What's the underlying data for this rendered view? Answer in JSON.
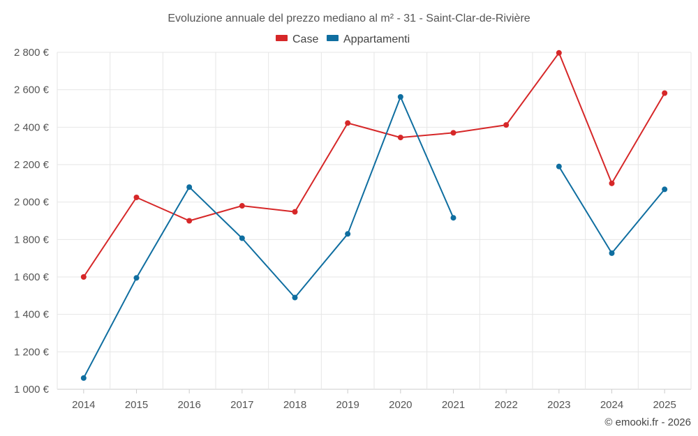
{
  "chart_data": {
    "type": "line",
    "title": "Evoluzione annuale del prezzo mediano al m² - 31 - Saint-Clar-de-Rivière",
    "x": [
      "2014",
      "2015",
      "2016",
      "2017",
      "2018",
      "2019",
      "2020",
      "2021",
      "2022",
      "2023",
      "2024",
      "2025"
    ],
    "series": [
      {
        "name": "Case",
        "color": "#d62728",
        "values": [
          1600,
          2025,
          1900,
          1980,
          1948,
          2422,
          2345,
          2370,
          2412,
          2797,
          2100,
          2582
        ]
      },
      {
        "name": "Appartamenti",
        "color": "#0f6ea0",
        "values": [
          1060,
          1595,
          2080,
          1807,
          1490,
          1830,
          2562,
          1916,
          null,
          2190,
          1727,
          2068
        ]
      }
    ],
    "y_ticks": [
      1000,
      1200,
      1400,
      1600,
      1800,
      2000,
      2200,
      2400,
      2600,
      2800
    ],
    "y_tick_labels": [
      "1 000 €",
      "1 200 €",
      "1 400 €",
      "1 600 €",
      "1 800 €",
      "2 000 €",
      "2 200 €",
      "2 400 €",
      "2 600 €",
      "2 800 €"
    ],
    "ylim": [
      1000,
      2800
    ],
    "xlabel": "",
    "ylabel": "",
    "grid": true,
    "legend_position": "top-center"
  },
  "credit": "© emooki.fr - 2026"
}
